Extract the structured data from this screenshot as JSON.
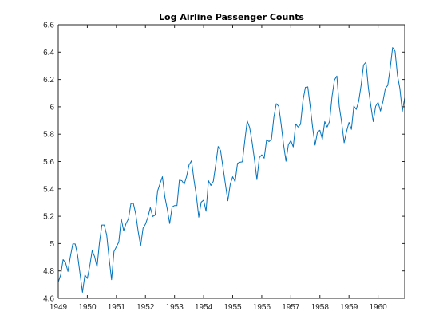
{
  "chart_data": {
    "type": "line",
    "title": "Log Airline Passenger Counts",
    "xlabel": "",
    "ylabel": "",
    "xlim": [
      1949,
      1960.917
    ],
    "ylim": [
      4.6,
      6.6
    ],
    "xticks": [
      "1949",
      "1950",
      "1951",
      "1952",
      "1953",
      "1954",
      "1955",
      "1956",
      "1957",
      "1958",
      "1959",
      "1960"
    ],
    "yticks": [
      "4.6",
      "4.8",
      "5",
      "5.2",
      "5.4",
      "5.6",
      "5.8",
      "6",
      "6.2",
      "6.4",
      "6.6"
    ],
    "grid": false,
    "line_color": "#0072BD",
    "series": [
      {
        "x_start": "1949-01",
        "frequency": "monthly",
        "values": [
          4.718,
          4.771,
          4.883,
          4.86,
          4.796,
          4.905,
          4.997,
          4.997,
          4.913,
          4.779,
          4.644,
          4.771,
          4.745,
          4.836,
          4.949,
          4.905,
          4.828,
          5.004,
          5.136,
          5.136,
          5.063,
          4.89,
          4.736,
          4.942,
          4.977,
          5.011,
          5.182,
          5.094,
          5.147,
          5.182,
          5.293,
          5.293,
          5.215,
          5.088,
          4.984,
          5.112,
          5.142,
          5.193,
          5.263,
          5.198,
          5.209,
          5.384,
          5.438,
          5.489,
          5.342,
          5.252,
          5.147,
          5.268,
          5.278,
          5.278,
          5.464,
          5.46,
          5.434,
          5.493,
          5.576,
          5.606,
          5.468,
          5.352,
          5.193,
          5.303,
          5.318,
          5.236,
          5.46,
          5.425,
          5.455,
          5.576,
          5.71,
          5.68,
          5.557,
          5.434,
          5.313,
          5.434,
          5.489,
          5.451,
          5.587,
          5.595,
          5.598,
          5.753,
          5.897,
          5.849,
          5.743,
          5.613,
          5.468,
          5.628,
          5.649,
          5.624,
          5.759,
          5.746,
          5.763,
          5.924,
          6.023,
          6.004,
          5.872,
          5.724,
          5.602,
          5.724,
          5.753,
          5.707,
          5.875,
          5.852,
          5.872,
          6.045,
          6.142,
          6.146,
          6.001,
          5.849,
          5.72,
          5.817,
          5.829,
          5.762,
          5.892,
          5.852,
          5.894,
          6.075,
          6.196,
          6.225,
          6.001,
          5.883,
          5.737,
          5.82,
          5.886,
          5.835,
          6.006,
          5.981,
          6.04,
          6.157,
          6.306,
          6.326,
          6.138,
          6.009,
          5.892,
          6.004,
          6.033,
          5.969,
          6.038,
          6.133,
          6.157,
          6.282,
          6.433,
          6.407,
          6.23,
          6.133,
          5.966,
          6.068
        ]
      }
    ]
  }
}
